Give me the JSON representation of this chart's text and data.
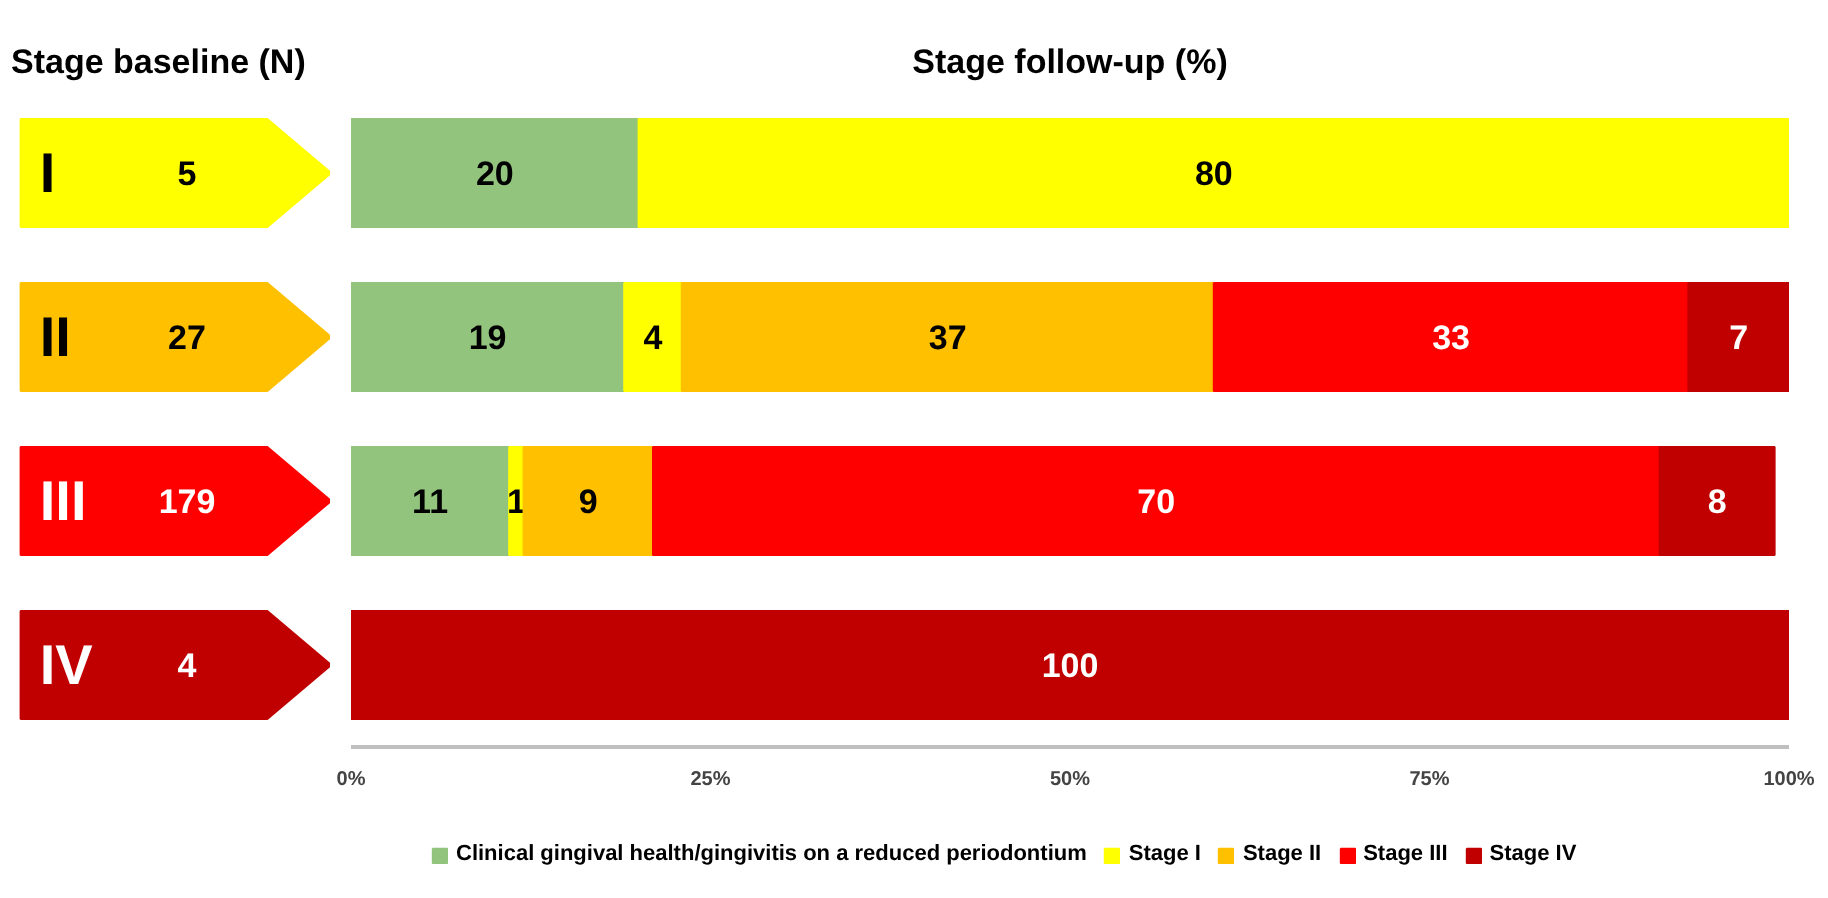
{
  "chart_data": {
    "type": "bar",
    "orientation": "horizontal",
    "stacked": true,
    "title": "Stage follow-up (%)",
    "ylabel": "Stage baseline (N)",
    "categories": [
      "I",
      "II",
      "III",
      "IV"
    ],
    "annotations": [
      "5",
      "27",
      "179",
      "4"
    ],
    "series": [
      {
        "name": "Clinical gingival health/gingivitis on a reduced periodontium",
        "color": "#93c47d",
        "values": [
          20,
          19,
          11,
          null
        ]
      },
      {
        "name": "Stage I",
        "color": "#ffff00",
        "values": [
          80,
          4,
          1,
          null
        ]
      },
      {
        "name": "Stage II",
        "color": "#ffc000",
        "values": [
          null,
          37,
          9,
          null
        ]
      },
      {
        "name": "Stage III",
        "color": "#ff0000",
        "values": [
          null,
          33,
          70,
          null
        ]
      },
      {
        "name": "Stage IV",
        "color": "#c00000",
        "values": [
          null,
          7,
          8,
          100
        ]
      }
    ],
    "xlim": [
      0,
      100
    ],
    "xticks": [
      {
        "value": 0,
        "label": "0%"
      },
      {
        "value": 25,
        "label": "25%"
      },
      {
        "value": 50,
        "label": "50%"
      },
      {
        "value": 75,
        "label": "75%"
      },
      {
        "value": 100,
        "label": "100%"
      }
    ],
    "data_labels": true,
    "grid": false,
    "legend": "bottom",
    "tick_labels": "x"
  }
}
